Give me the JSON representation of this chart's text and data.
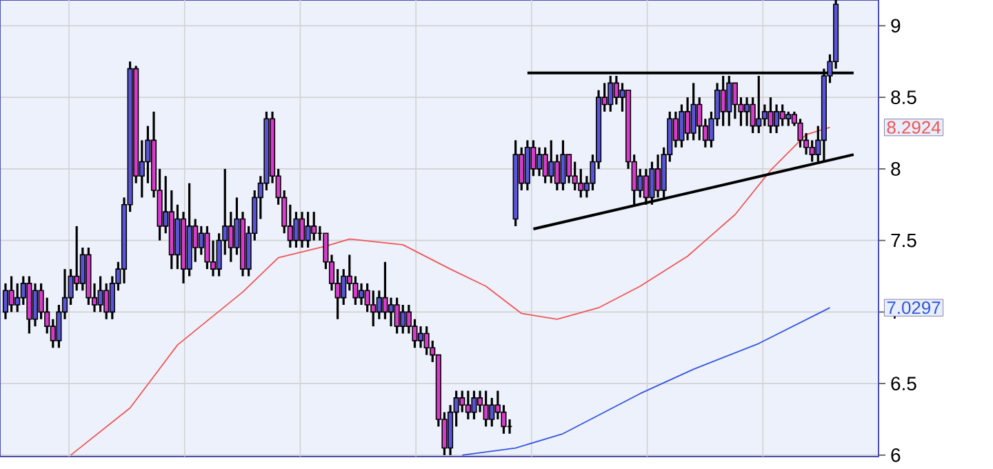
{
  "chart_data": {
    "type": "candlestick",
    "ylim": [
      5.99,
      9.18
    ],
    "yticks": [
      6,
      6.5,
      7,
      7.5,
      8,
      8.5,
      9
    ],
    "grid": true,
    "categories": [
      null,
      null,
      null,
      null,
      null,
      null,
      null,
      null,
      null,
      null,
      null,
      null,
      null,
      null,
      null,
      null,
      null,
      null,
      null,
      null,
      null,
      null,
      null,
      null,
      null,
      null,
      null,
      null,
      null,
      null,
      null,
      null,
      null,
      null,
      null,
      null,
      null,
      null,
      null,
      null,
      null,
      null,
      null,
      null,
      null,
      null,
      null,
      null,
      null,
      null,
      null,
      null,
      null,
      null,
      null,
      null,
      null,
      null,
      null,
      null,
      null,
      null,
      null,
      null,
      null,
      null,
      null,
      null,
      null,
      null,
      null,
      null,
      null,
      null,
      null,
      null,
      null,
      null,
      null,
      null,
      null,
      null,
      null,
      null,
      null,
      null,
      null,
      null,
      null,
      null,
      null,
      null,
      null,
      null,
      null,
      null,
      null,
      null,
      null,
      null,
      null,
      null,
      null,
      null,
      null,
      null,
      null,
      null,
      null,
      null,
      null,
      null,
      null,
      null,
      null,
      null,
      null,
      null,
      null,
      null,
      null,
      null,
      null,
      null,
      null,
      null,
      null,
      null,
      null,
      null,
      null,
      null,
      null,
      null,
      null,
      null,
      null,
      null,
      null,
      null,
      null,
      null,
      null,
      null
    ],
    "ohlc": [
      [
        7.0,
        7.2,
        6.95,
        7.15
      ],
      [
        7.15,
        7.25,
        7.0,
        7.05
      ],
      [
        7.05,
        7.2,
        7.0,
        7.1
      ],
      [
        7.1,
        7.25,
        7.05,
        7.2
      ],
      [
        7.2,
        7.25,
        6.85,
        6.95
      ],
      [
        6.95,
        7.2,
        6.9,
        7.15
      ],
      [
        7.15,
        7.2,
        6.95,
        7.0
      ],
      [
        7.0,
        7.1,
        6.85,
        6.9
      ],
      [
        6.9,
        6.95,
        6.75,
        6.8
      ],
      [
        6.8,
        7.05,
        6.75,
        7.0
      ],
      [
        7.0,
        7.3,
        6.95,
        7.1
      ],
      [
        7.1,
        7.3,
        7.05,
        7.25
      ],
      [
        7.25,
        7.6,
        7.15,
        7.2
      ],
      [
        7.2,
        7.45,
        7.15,
        7.4
      ],
      [
        7.4,
        7.45,
        7.05,
        7.1
      ],
      [
        7.1,
        7.2,
        7.0,
        7.05
      ],
      [
        7.05,
        7.25,
        7.0,
        7.15
      ],
      [
        7.15,
        7.2,
        6.95,
        7.0
      ],
      [
        7.0,
        7.25,
        6.95,
        7.2
      ],
      [
        7.2,
        7.35,
        7.15,
        7.3
      ],
      [
        7.3,
        7.8,
        7.2,
        7.75
      ],
      [
        7.75,
        8.75,
        7.7,
        8.7
      ],
      [
        8.7,
        8.72,
        7.9,
        7.95
      ],
      [
        7.95,
        8.2,
        7.8,
        8.05
      ],
      [
        8.05,
        8.3,
        7.9,
        8.2
      ],
      [
        8.2,
        8.4,
        7.8,
        7.85
      ],
      [
        7.85,
        8.0,
        7.5,
        7.6
      ],
      [
        7.6,
        7.95,
        7.55,
        7.7
      ],
      [
        7.7,
        7.85,
        7.3,
        7.4
      ],
      [
        7.4,
        7.75,
        7.3,
        7.65
      ],
      [
        7.65,
        7.7,
        7.2,
        7.3
      ],
      [
        7.3,
        7.9,
        7.25,
        7.6
      ],
      [
        7.6,
        7.65,
        7.35,
        7.45
      ],
      [
        7.45,
        7.6,
        7.4,
        7.55
      ],
      [
        7.55,
        7.6,
        7.3,
        7.35
      ],
      [
        7.35,
        7.5,
        7.25,
        7.3
      ],
      [
        7.3,
        7.55,
        7.25,
        7.5
      ],
      [
        7.5,
        8.0,
        7.4,
        7.6
      ],
      [
        7.6,
        7.7,
        7.35,
        7.45
      ],
      [
        7.45,
        7.8,
        7.4,
        7.65
      ],
      [
        7.65,
        7.7,
        7.25,
        7.3
      ],
      [
        7.3,
        7.6,
        7.25,
        7.55
      ],
      [
        7.55,
        7.85,
        7.5,
        7.8
      ],
      [
        7.8,
        7.95,
        7.65,
        7.9
      ],
      [
        7.9,
        8.4,
        7.85,
        8.35
      ],
      [
        8.35,
        8.4,
        7.9,
        7.95
      ],
      [
        7.95,
        8.0,
        7.75,
        7.8
      ],
      [
        7.8,
        7.85,
        7.55,
        7.6
      ],
      [
        7.6,
        7.75,
        7.45,
        7.5
      ],
      [
        7.5,
        7.7,
        7.45,
        7.65
      ],
      [
        7.65,
        7.7,
        7.45,
        7.5
      ],
      [
        7.5,
        7.7,
        7.45,
        7.6
      ],
      [
        7.6,
        7.7,
        7.5,
        7.55
      ],
      [
        7.55,
        7.6,
        7.5,
        7.55
      ],
      [
        7.55,
        7.55,
        7.3,
        7.35
      ],
      [
        7.35,
        7.4,
        7.15,
        7.2
      ],
      [
        7.2,
        7.3,
        6.95,
        7.1
      ],
      [
        7.1,
        7.3,
        7.05,
        7.25
      ],
      [
        7.25,
        7.4,
        7.15,
        7.2
      ],
      [
        7.2,
        7.25,
        7.05,
        7.1
      ],
      [
        7.1,
        7.2,
        7.05,
        7.15
      ],
      [
        7.15,
        7.2,
        7.0,
        7.05
      ],
      [
        7.05,
        7.15,
        6.9,
        7.0
      ],
      [
        7.0,
        7.15,
        6.95,
        7.1
      ],
      [
        7.1,
        7.35,
        6.95,
        7.0
      ],
      [
        7.0,
        7.1,
        6.9,
        7.05
      ],
      [
        7.05,
        7.1,
        6.85,
        6.9
      ],
      [
        6.9,
        7.05,
        6.85,
        7.0
      ],
      [
        7.0,
        7.05,
        6.85,
        6.9
      ],
      [
        6.9,
        6.95,
        6.75,
        6.8
      ],
      [
        6.8,
        6.9,
        6.75,
        6.85
      ],
      [
        6.85,
        6.9,
        6.7,
        6.75
      ],
      [
        6.75,
        6.8,
        6.65,
        6.7
      ],
      [
        6.7,
        6.7,
        6.2,
        6.25
      ],
      [
        6.25,
        6.3,
        6.0,
        6.05
      ],
      [
        6.05,
        6.35,
        6.0,
        6.3
      ],
      [
        6.3,
        6.45,
        6.2,
        6.4
      ],
      [
        6.4,
        6.45,
        6.3,
        6.35
      ],
      [
        6.35,
        6.45,
        6.25,
        6.3
      ],
      [
        6.3,
        6.45,
        6.25,
        6.4
      ],
      [
        6.4,
        6.45,
        6.3,
        6.35
      ],
      [
        6.35,
        6.45,
        6.2,
        6.25
      ],
      [
        6.25,
        6.4,
        6.2,
        6.35
      ],
      [
        6.35,
        6.45,
        6.25,
        6.3
      ],
      [
        6.3,
        6.35,
        6.15,
        6.2
      ],
      [
        6.2,
        6.25,
        6.15,
        6.2
      ],
      [
        7.65,
        8.2,
        7.6,
        8.1
      ],
      [
        8.1,
        8.15,
        7.85,
        7.9
      ],
      [
        7.9,
        8.2,
        7.85,
        8.15
      ],
      [
        8.15,
        8.2,
        7.95,
        8.0
      ],
      [
        8.0,
        8.15,
        7.95,
        8.1
      ],
      [
        8.1,
        8.15,
        7.9,
        7.95
      ],
      [
        7.95,
        8.2,
        7.9,
        8.05
      ],
      [
        8.05,
        8.1,
        7.85,
        7.9
      ],
      [
        7.9,
        8.2,
        7.85,
        8.1
      ],
      [
        8.1,
        8.1,
        7.9,
        7.95
      ],
      [
        7.95,
        8.05,
        7.85,
        7.9
      ],
      [
        7.9,
        8.0,
        7.8,
        7.85
      ],
      [
        7.85,
        7.95,
        7.8,
        7.9
      ],
      [
        7.9,
        8.1,
        7.85,
        8.05
      ],
      [
        8.05,
        8.55,
        8.0,
        8.5
      ],
      [
        8.5,
        8.6,
        8.4,
        8.45
      ],
      [
        8.45,
        8.65,
        8.4,
        8.6
      ],
      [
        8.6,
        8.65,
        8.45,
        8.5
      ],
      [
        8.5,
        8.6,
        8.4,
        8.55
      ],
      [
        8.55,
        8.55,
        8.0,
        8.05
      ],
      [
        8.05,
        8.1,
        7.75,
        7.85
      ],
      [
        7.85,
        8.0,
        7.8,
        7.95
      ],
      [
        7.95,
        8.0,
        7.75,
        7.8
      ],
      [
        7.8,
        8.05,
        7.75,
        8.0
      ],
      [
        8.0,
        8.1,
        7.8,
        7.85
      ],
      [
        7.85,
        8.15,
        7.8,
        8.1
      ],
      [
        8.1,
        8.4,
        8.05,
        8.35
      ],
      [
        8.35,
        8.4,
        8.15,
        8.2
      ],
      [
        8.2,
        8.45,
        8.15,
        8.4
      ],
      [
        8.4,
        8.5,
        8.2,
        8.25
      ],
      [
        8.25,
        8.6,
        8.2,
        8.45
      ],
      [
        8.45,
        8.5,
        8.2,
        8.3
      ],
      [
        8.3,
        8.35,
        8.15,
        8.2
      ],
      [
        8.2,
        8.4,
        8.15,
        8.35
      ],
      [
        8.35,
        8.6,
        8.3,
        8.55
      ],
      [
        8.55,
        8.65,
        8.3,
        8.4
      ],
      [
        8.4,
        8.65,
        8.3,
        8.6
      ],
      [
        8.6,
        8.6,
        8.35,
        8.45
      ],
      [
        8.45,
        8.5,
        8.3,
        8.4
      ],
      [
        8.4,
        8.5,
        8.3,
        8.45
      ],
      [
        8.45,
        8.5,
        8.25,
        8.3
      ],
      [
        8.3,
        8.65,
        8.25,
        8.35
      ],
      [
        8.35,
        8.45,
        8.3,
        8.4
      ],
      [
        8.4,
        8.5,
        8.25,
        8.3
      ],
      [
        8.3,
        8.45,
        8.25,
        8.4
      ],
      [
        8.4,
        8.45,
        8.3,
        8.35
      ],
      [
        8.35,
        8.4,
        8.3,
        8.38
      ],
      [
        8.38,
        8.4,
        8.3,
        8.32
      ],
      [
        8.32,
        8.35,
        8.15,
        8.2
      ],
      [
        8.2,
        8.25,
        8.1,
        8.15
      ],
      [
        8.15,
        8.2,
        8.05,
        8.1
      ],
      [
        8.1,
        8.3,
        8.05,
        8.2
      ],
      [
        8.2,
        8.7,
        8.05,
        8.65
      ],
      [
        8.65,
        8.8,
        8.6,
        8.75
      ],
      [
        8.75,
        9.18,
        8.7,
        9.15
      ],
      null,
      null,
      null
    ],
    "series": [
      {
        "type": "line",
        "color": "#f05555",
        "values": [
          null,
          null,
          null,
          null,
          null,
          null,
          null,
          null,
          null,
          null,
          null,
          6.0,
          null,
          null,
          null,
          null,
          null,
          null,
          null,
          null,
          null,
          6.33,
          null,
          null,
          null,
          null,
          null,
          null,
          null,
          6.77,
          null,
          null,
          null,
          null,
          null,
          null,
          null,
          null,
          null,
          null,
          7.14,
          null,
          null,
          null,
          null,
          null,
          7.38,
          null,
          null,
          null,
          null,
          null,
          null,
          null,
          7.46,
          null,
          null,
          null,
          7.51,
          null,
          null,
          null,
          null,
          null,
          null,
          null,
          null,
          7.47,
          null,
          null,
          null,
          null,
          null,
          null,
          null,
          7.3,
          null,
          null,
          null,
          null,
          null,
          7.18,
          null,
          null,
          null,
          null,
          null,
          6.99,
          null,
          null,
          null,
          null,
          null,
          6.95,
          null,
          null,
          null,
          null,
          null,
          null,
          7.03,
          null,
          null,
          null,
          null,
          null,
          null,
          7.18,
          null,
          null,
          null,
          null,
          null,
          null,
          null,
          7.39,
          null,
          null,
          null,
          null,
          null,
          null,
          null,
          7.68,
          null,
          null,
          null,
          null,
          null,
          7.99,
          null,
          null,
          null,
          null,
          null,
          8.24,
          null,
          null,
          null,
          8.29,
          null,
          null,
          null,
          null
        ]
      },
      {
        "type": "line",
        "color": "#3355dd",
        "values": [
          null,
          null,
          null,
          null,
          null,
          null,
          null,
          null,
          null,
          null,
          null,
          null,
          null,
          null,
          null,
          null,
          null,
          null,
          null,
          null,
          null,
          null,
          null,
          null,
          null,
          null,
          null,
          null,
          null,
          null,
          null,
          null,
          null,
          null,
          null,
          null,
          null,
          null,
          null,
          null,
          null,
          null,
          null,
          null,
          null,
          null,
          null,
          null,
          null,
          null,
          null,
          null,
          null,
          null,
          null,
          null,
          null,
          null,
          null,
          null,
          null,
          null,
          null,
          null,
          null,
          null,
          null,
          null,
          null,
          null,
          null,
          null,
          null,
          null,
          null,
          null,
          null,
          6.0,
          null,
          null,
          null,
          null,
          null,
          null,
          null,
          null,
          6.05,
          null,
          null,
          null,
          null,
          null,
          null,
          null,
          6.15,
          null,
          null,
          null,
          null,
          null,
          null,
          null,
          null,
          null,
          null,
          null,
          null,
          6.43,
          null,
          null,
          null,
          null,
          null,
          null,
          null,
          null,
          6.6,
          null,
          null,
          null,
          null,
          null,
          null,
          null,
          null,
          null,
          null,
          6.78,
          null,
          null,
          null,
          null,
          null,
          null,
          null,
          null,
          null,
          null,
          null,
          7.03,
          null,
          null,
          null,
          null
        ]
      },
      {
        "type": "line",
        "color": "#000000",
        "values": [
          null,
          null,
          null,
          null,
          null,
          null,
          null,
          null,
          null,
          null,
          null,
          null,
          null,
          null,
          null,
          null,
          null,
          null,
          null,
          null,
          null,
          null,
          null,
          null,
          null,
          null,
          null,
          null,
          null,
          null,
          null,
          null,
          null,
          null,
          null,
          null,
          null,
          null,
          null,
          null,
          null,
          null,
          null,
          null,
          null,
          null,
          null,
          null,
          null,
          null,
          null,
          null,
          null,
          null,
          null,
          null,
          null,
          null,
          null,
          null,
          null,
          null,
          null,
          null,
          null,
          null,
          null,
          null,
          null,
          null,
          null,
          null,
          null,
          null,
          null,
          null,
          null,
          null,
          null,
          null,
          null,
          null,
          null,
          null,
          null,
          null,
          null,
          null,
          8.67,
          null,
          null,
          null,
          null,
          null,
          null,
          null,
          null,
          null,
          null,
          null,
          null,
          null,
          null,
          null,
          null,
          null,
          null,
          null,
          null,
          null,
          null,
          null,
          null,
          null,
          null,
          null,
          null,
          null,
          null,
          null,
          null,
          null,
          null,
          null,
          null,
          null,
          null,
          null,
          null,
          null,
          null,
          null,
          null,
          null,
          null,
          null,
          null,
          null,
          null,
          null,
          null,
          null,
          null,
          8.67
        ]
      },
      {
        "type": "line",
        "color": "#000000",
        "values": [
          null,
          null,
          null,
          null,
          null,
          null,
          null,
          null,
          null,
          null,
          null,
          null,
          null,
          null,
          null,
          null,
          null,
          null,
          null,
          null,
          null,
          null,
          null,
          null,
          null,
          null,
          null,
          null,
          null,
          null,
          null,
          null,
          null,
          null,
          null,
          null,
          null,
          null,
          null,
          null,
          null,
          null,
          null,
          null,
          null,
          null,
          null,
          null,
          null,
          null,
          null,
          null,
          null,
          null,
          null,
          null,
          null,
          null,
          null,
          null,
          null,
          null,
          null,
          null,
          null,
          null,
          null,
          null,
          null,
          null,
          null,
          null,
          null,
          null,
          null,
          null,
          null,
          null,
          null,
          null,
          null,
          null,
          null,
          null,
          null,
          null,
          null,
          null,
          null,
          7.58,
          null,
          null,
          null,
          null,
          null,
          null,
          null,
          null,
          null,
          null,
          null,
          null,
          null,
          null,
          null,
          null,
          null,
          null,
          null,
          null,
          null,
          null,
          null,
          null,
          null,
          null,
          null,
          null,
          null,
          null,
          null,
          null,
          null,
          null,
          null,
          null,
          null,
          null,
          null,
          null,
          null,
          null,
          null,
          null,
          null,
          null,
          null,
          null,
          null,
          null,
          null,
          null,
          null,
          8.1
        ]
      }
    ],
    "annotations": [
      "8.2924",
      "7.0297"
    ]
  }
}
